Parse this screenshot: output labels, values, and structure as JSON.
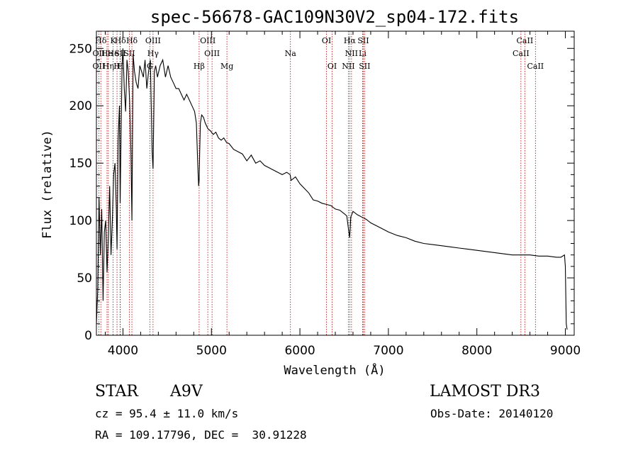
{
  "chart_data": {
    "type": "line",
    "title": "spec-56678-GAC109N30V2_sp04-172.fits",
    "xlabel": "Wavelength (Å)",
    "ylabel": "Flux (relative)",
    "xlim": [
      3700,
      9100
    ],
    "ylim": [
      0,
      265
    ],
    "x_ticks": [
      4000,
      5000,
      6000,
      7000,
      8000,
      9000
    ],
    "x_tick_labels": [
      "4000",
      "5000",
      "6000",
      "7000",
      "8000",
      "9000"
    ],
    "y_ticks": [
      0,
      50,
      100,
      150,
      200,
      250
    ],
    "y_tick_labels": [
      "0",
      "50",
      "100",
      "150",
      "200",
      "250"
    ],
    "grid": false,
    "series": [
      {
        "name": "spectrum",
        "x": [
          3700,
          3715,
          3730,
          3745,
          3760,
          3775,
          3790,
          3805,
          3820,
          3835,
          3850,
          3865,
          3880,
          3895,
          3910,
          3925,
          3933,
          3945,
          3960,
          3968,
          3980,
          3990,
          4000,
          4015,
          4030,
          4045,
          4060,
          4075,
          4090,
          4101,
          4115,
          4130,
          4150,
          4170,
          4190,
          4210,
          4230,
          4250,
          4270,
          4290,
          4310,
          4330,
          4340,
          4355,
          4370,
          4390,
          4420,
          4450,
          4480,
          4510,
          4540,
          4570,
          4600,
          4630,
          4660,
          4690,
          4720,
          4750,
          4780,
          4810,
          4830,
          4845,
          4855,
          4861,
          4867,
          4875,
          4890,
          4910,
          4930,
          4960,
          4990,
          5020,
          5050,
          5080,
          5110,
          5140,
          5170,
          5200,
          5250,
          5300,
          5350,
          5400,
          5450,
          5500,
          5550,
          5600,
          5650,
          5700,
          5750,
          5800,
          5850,
          5890,
          5900,
          5950,
          6000,
          6050,
          6100,
          6150,
          6200,
          6250,
          6300,
          6350,
          6400,
          6450,
          6500,
          6530,
          6550,
          6563,
          6575,
          6600,
          6650,
          6700,
          6750,
          6800,
          6900,
          7000,
          7100,
          7200,
          7300,
          7400,
          7500,
          7600,
          7700,
          7800,
          7900,
          8000,
          8100,
          8200,
          8300,
          8400,
          8500,
          8600,
          8700,
          8800,
          8900,
          8950,
          8990,
          9000,
          9010,
          9020
        ],
        "y": [
          10,
          40,
          120,
          70,
          110,
          30,
          90,
          100,
          55,
          85,
          130,
          70,
          100,
          140,
          150,
          110,
          75,
          170,
          200,
          115,
          180,
          235,
          250,
          215,
          195,
          240,
          230,
          205,
          160,
          100,
          245,
          230,
          220,
          215,
          235,
          230,
          225,
          240,
          215,
          230,
          240,
          160,
          145,
          230,
          235,
          225,
          235,
          240,
          225,
          235,
          225,
          220,
          215,
          215,
          210,
          205,
          210,
          205,
          200,
          195,
          185,
          150,
          130,
          135,
          160,
          185,
          192,
          190,
          185,
          180,
          178,
          175,
          177,
          172,
          170,
          172,
          168,
          167,
          162,
          160,
          158,
          152,
          157,
          150,
          152,
          148,
          146,
          144,
          142,
          140,
          142,
          140,
          135,
          138,
          132,
          128,
          124,
          118,
          117,
          115,
          114,
          113,
          110,
          109,
          106,
          104,
          92,
          85,
          103,
          108,
          105,
          103,
          101,
          98,
          94,
          90,
          87,
          85,
          82,
          80,
          79,
          78,
          77,
          76,
          75,
          74,
          73,
          72,
          71,
          70,
          70,
          70,
          69,
          69,
          68,
          68,
          70,
          60,
          10,
          5
        ]
      }
    ],
    "line_markers": [
      {
        "label": "Hδ",
        "wavelength": 3750,
        "row": 0
      },
      {
        "label": "OII",
        "wavelength": 3727,
        "row": 1
      },
      {
        "label": "OII",
        "wavelength": 3727,
        "row": 2
      },
      {
        "label": "He",
        "wavelength": 3820,
        "row": 1
      },
      {
        "label": "Hη",
        "wavelength": 3835,
        "row": 2
      },
      {
        "label": "K",
        "wavelength": 3889,
        "row": 0
      },
      {
        "label": "He",
        "wavelength": 3889,
        "row": 1
      },
      {
        "label": "H",
        "wavelength": 3933,
        "row": 2
      },
      {
        "label": "Hδ",
        "wavelength": 3970,
        "row": 0
      },
      {
        "label": "SII",
        "wavelength": 3968,
        "row": 1
      },
      {
        "label": "H",
        "wavelength": 3968,
        "row": 2
      },
      {
        "label": "SII",
        "wavelength": 4072,
        "row": 1
      },
      {
        "label": "Hδ",
        "wavelength": 4101,
        "row": 0
      },
      {
        "label": "OIII",
        "wavelength": 4340,
        "row": 0
      },
      {
        "label": "Hγ",
        "wavelength": 4340,
        "row": 1
      },
      {
        "label": "G",
        "wavelength": 4304,
        "row": 2
      },
      {
        "label": "OIII",
        "wavelength": 4959,
        "row": 0
      },
      {
        "label": "OIII",
        "wavelength": 5007,
        "row": 1
      },
      {
        "label": "Hβ",
        "wavelength": 4861,
        "row": 2
      },
      {
        "label": "Mg",
        "wavelength": 5175,
        "row": 2
      },
      {
        "label": "Na",
        "wavelength": 5893,
        "row": 1
      },
      {
        "label": "OI",
        "wavelength": 6300,
        "row": 0
      },
      {
        "label": "OI",
        "wavelength": 6364,
        "row": 2
      },
      {
        "label": "Hα",
        "wavelength": 6563,
        "row": 0
      },
      {
        "label": "SII",
        "wavelength": 6716,
        "row": 0
      },
      {
        "label": "NII",
        "wavelength": 6583,
        "row": 1
      },
      {
        "label": "Li",
        "wavelength": 6708,
        "row": 1
      },
      {
        "label": "NII",
        "wavelength": 6548,
        "row": 2
      },
      {
        "label": "SII",
        "wavelength": 6731,
        "row": 2
      },
      {
        "label": "CaII",
        "wavelength": 8542,
        "row": 0
      },
      {
        "label": "CaII",
        "wavelength": 8498,
        "row": 1
      },
      {
        "label": "CaII",
        "wavelength": 8662,
        "row": 2
      }
    ]
  },
  "info": {
    "object_class": "STAR",
    "subclass": "A9V",
    "survey": "LAMOST DR3",
    "cz": "cz = 95.4 ± 11.0 km/s",
    "obs_date": "Obs-Date: 20140120",
    "coords": "RA = 109.17796, DEC =  30.91228"
  }
}
